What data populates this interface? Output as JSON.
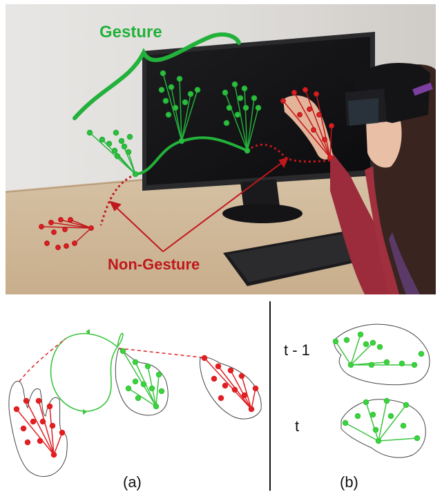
{
  "photo": {
    "gesture_label": "Gesture",
    "non_gesture_label": "Non-Gesture"
  },
  "panel_a": {
    "caption": "(a)"
  },
  "panel_b": {
    "caption": "(b)",
    "frame_prev_label": "t - 1",
    "frame_curr_label": "t"
  },
  "colors": {
    "gesture": "#22b13a",
    "non_gesture": "#c0181c",
    "joint_green": "#39d63a",
    "joint_red": "#e01f22"
  }
}
